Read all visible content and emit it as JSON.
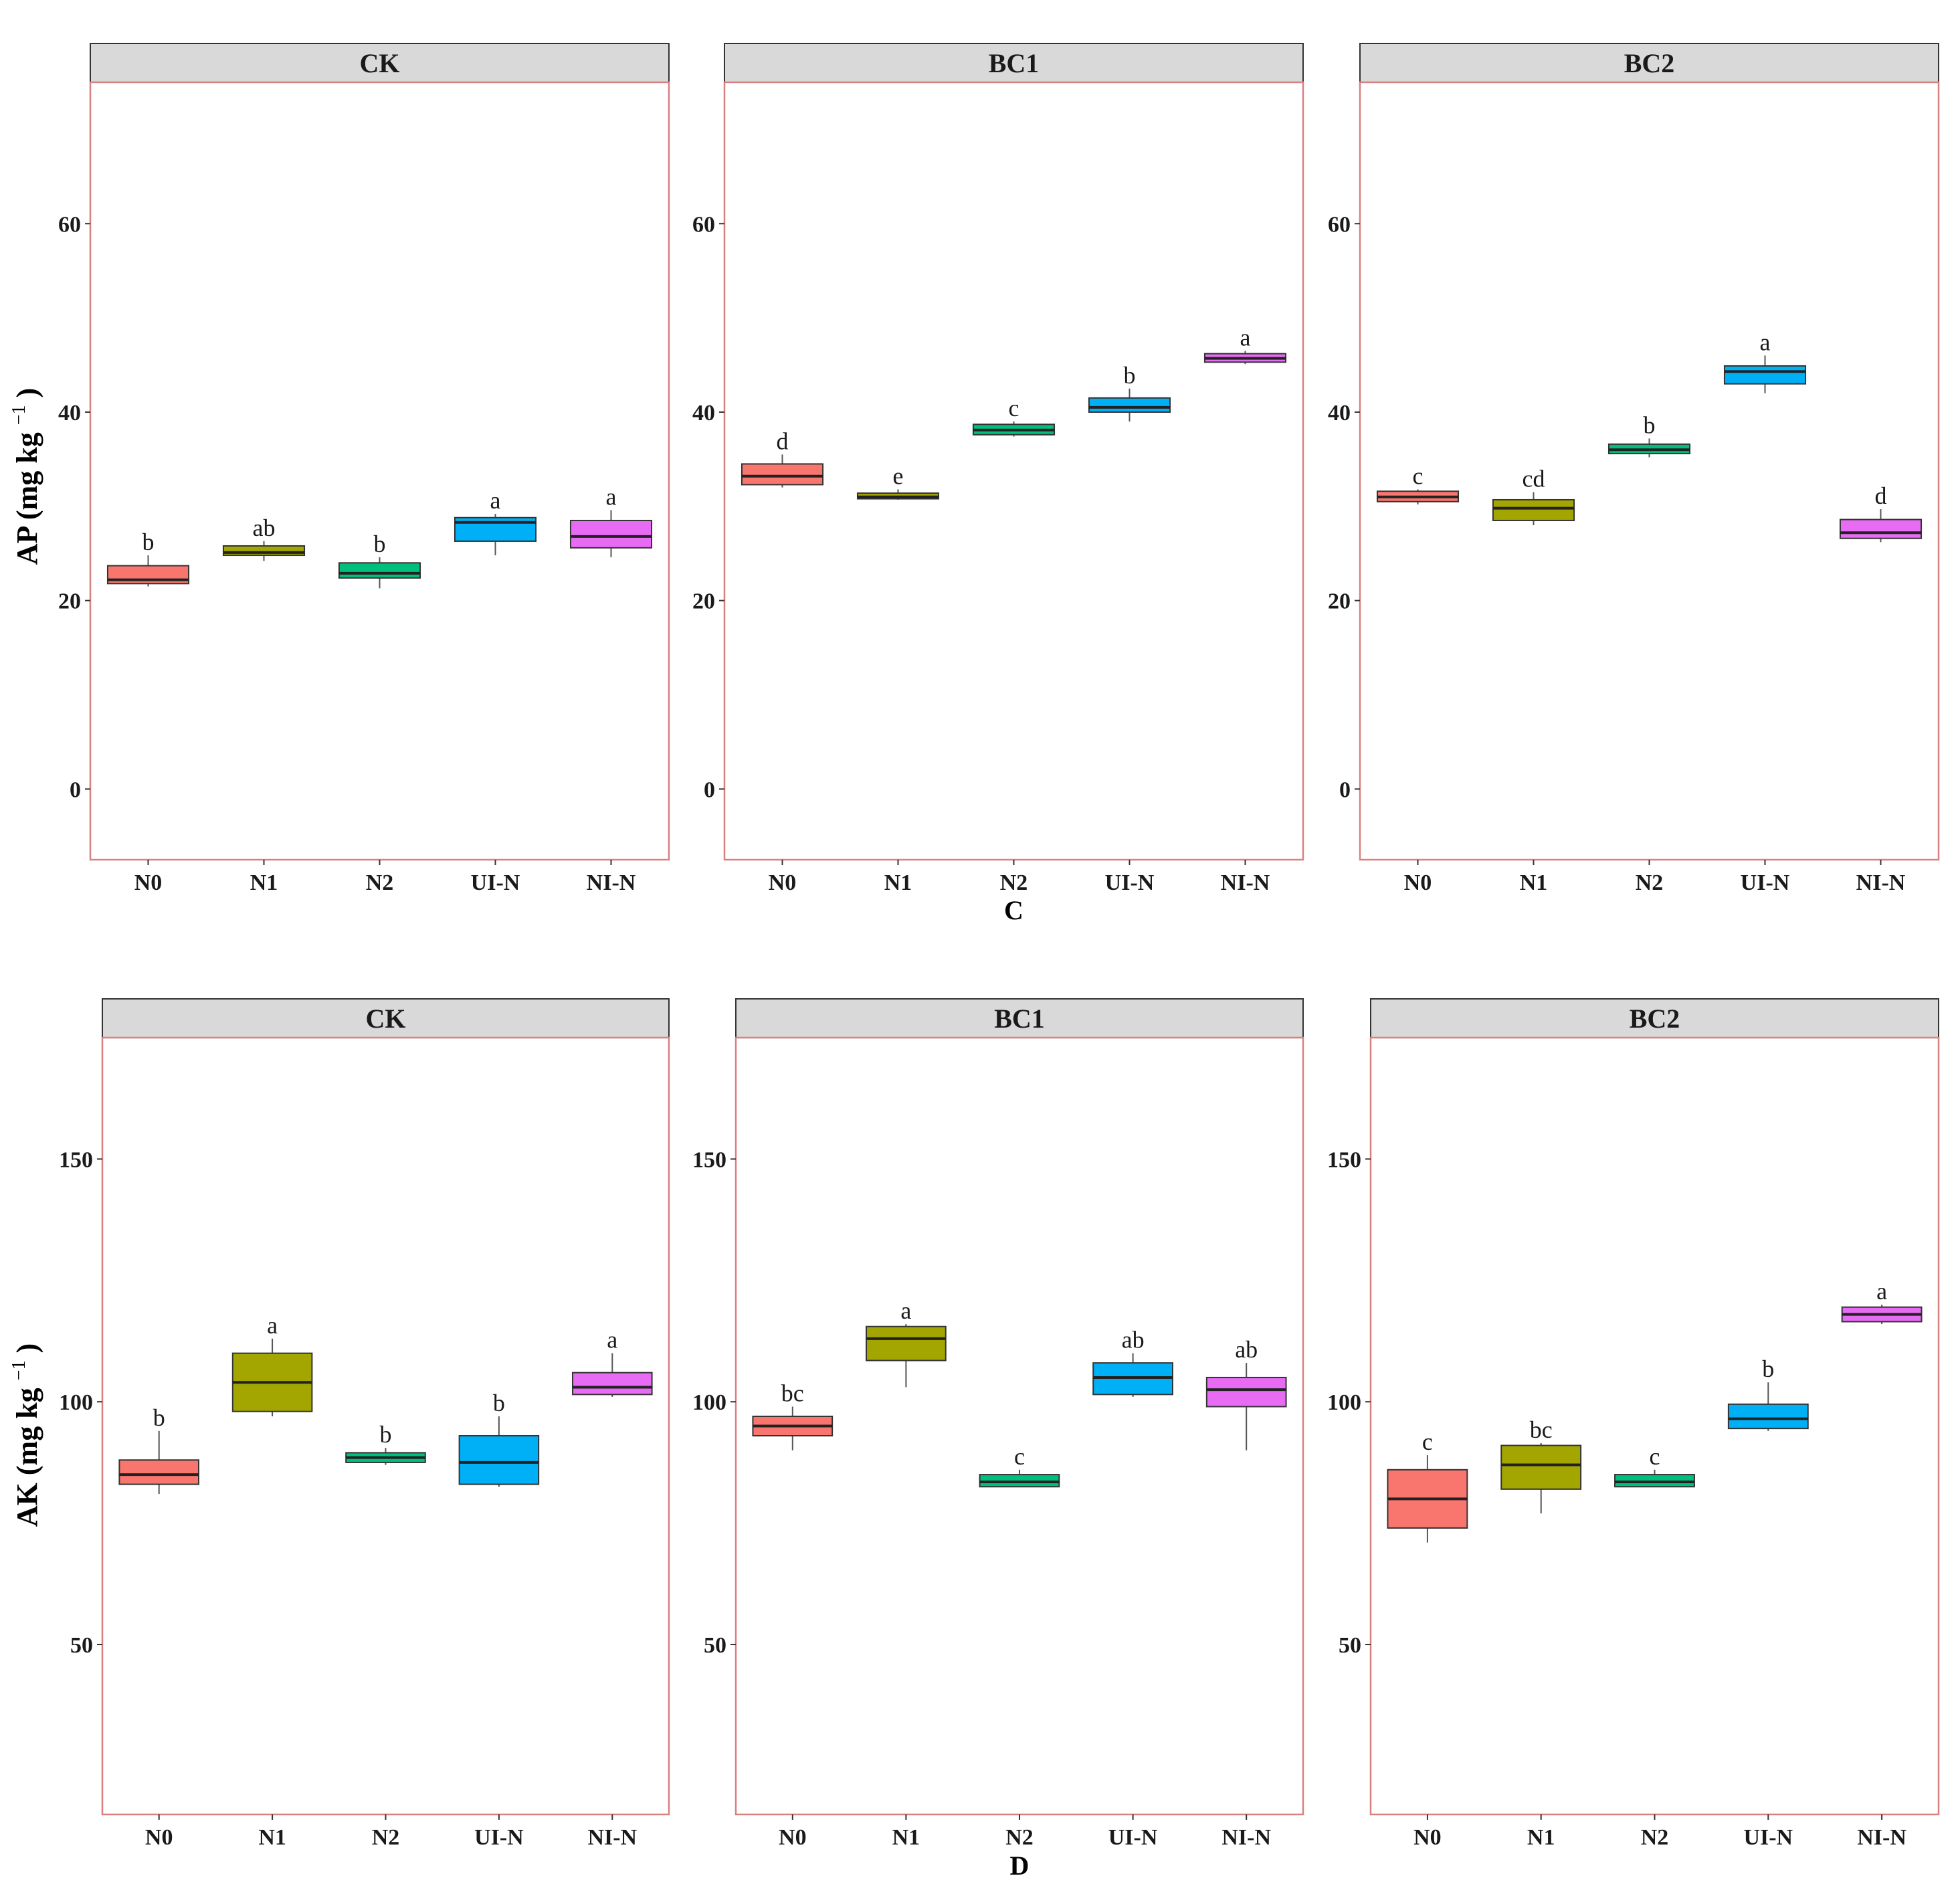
{
  "chart_data": [
    {
      "type": "boxplot",
      "variable": "AP",
      "ylabel": "AP",
      "ylabel_unit": "(mg kg",
      "ylabel_unit_sup": "−1",
      "ylabel_unit_close": ")",
      "caption": "C",
      "ylim": [
        -7.5,
        75
      ],
      "yticks": [
        0,
        20,
        40,
        60
      ],
      "ytick_labels": [
        "0",
        "20",
        "40",
        "60"
      ],
      "categories": [
        "N0",
        "N1",
        "N2",
        "UI-N",
        "NI-N"
      ],
      "colors": [
        "#f8766d",
        "#a3a500",
        "#00bf7d",
        "#00b0f6",
        "#e76bf3"
      ],
      "facets": [
        {
          "name": "CK",
          "boxes": [
            {
              "min": 21.5,
              "q1": 21.8,
              "median": 22.2,
              "q3": 23.7,
              "max": 24.8,
              "letter": "b"
            },
            {
              "min": 24.2,
              "q1": 24.8,
              "median": 25.1,
              "q3": 25.8,
              "max": 26.3,
              "letter": "ab"
            },
            {
              "min": 21.3,
              "q1": 22.4,
              "median": 22.9,
              "q3": 24.0,
              "max": 24.6,
              "letter": "b"
            },
            {
              "min": 24.8,
              "q1": 26.3,
              "median": 28.3,
              "q3": 28.8,
              "max": 29.2,
              "letter": "a"
            },
            {
              "min": 24.6,
              "q1": 25.6,
              "median": 26.8,
              "q3": 28.5,
              "max": 29.6,
              "letter": "a"
            }
          ]
        },
        {
          "name": "BC1",
          "boxes": [
            {
              "min": 32.0,
              "q1": 32.3,
              "median": 33.2,
              "q3": 34.5,
              "max": 35.5,
              "letter": "d"
            },
            {
              "min": 30.7,
              "q1": 30.8,
              "median": 31.0,
              "q3": 31.4,
              "max": 31.8,
              "letter": "e"
            },
            {
              "min": 37.4,
              "q1": 37.6,
              "median": 38.1,
              "q3": 38.7,
              "max": 39.0,
              "letter": "c"
            },
            {
              "min": 39.0,
              "q1": 40.0,
              "median": 40.5,
              "q3": 41.5,
              "max": 42.5,
              "letter": "b"
            },
            {
              "min": 45.1,
              "q1": 45.3,
              "median": 45.7,
              "q3": 46.2,
              "max": 46.5,
              "letter": "a"
            }
          ]
        },
        {
          "name": "BC2",
          "boxes": [
            {
              "min": 30.2,
              "q1": 30.5,
              "median": 31.0,
              "q3": 31.6,
              "max": 31.8,
              "letter": "c"
            },
            {
              "min": 28.0,
              "q1": 28.5,
              "median": 29.8,
              "q3": 30.7,
              "max": 31.5,
              "letter": "cd"
            },
            {
              "min": 35.2,
              "q1": 35.6,
              "median": 36.0,
              "q3": 36.6,
              "max": 37.2,
              "letter": "b"
            },
            {
              "min": 42.0,
              "q1": 43.0,
              "median": 44.3,
              "q3": 44.9,
              "max": 46.0,
              "letter": "a"
            },
            {
              "min": 26.2,
              "q1": 26.6,
              "median": 27.2,
              "q3": 28.6,
              "max": 29.7,
              "letter": "d"
            }
          ]
        }
      ]
    },
    {
      "type": "boxplot",
      "variable": "AK",
      "ylabel": "AK",
      "ylabel_unit": "(mg kg",
      "ylabel_unit_sup": "−1",
      "ylabel_unit_close": ")",
      "caption": "D",
      "ylim": [
        15,
        175
      ],
      "yticks": [
        50,
        100,
        150
      ],
      "ytick_labels": [
        "50",
        "100",
        "150"
      ],
      "categories": [
        "N0",
        "N1",
        "N2",
        "UI-N",
        "NI-N"
      ],
      "colors": [
        "#f8766d",
        "#a3a500",
        "#00bf7d",
        "#00b0f6",
        "#e76bf3"
      ],
      "facets": [
        {
          "name": "CK",
          "boxes": [
            {
              "min": 81,
              "q1": 83,
              "median": 85,
              "q3": 88,
              "max": 94,
              "letter": "b"
            },
            {
              "min": 97,
              "q1": 98,
              "median": 104,
              "q3": 110,
              "max": 113,
              "letter": "a"
            },
            {
              "min": 87,
              "q1": 87.5,
              "median": 88.5,
              "q3": 89.5,
              "max": 90.5,
              "letter": "b"
            },
            {
              "min": 82.5,
              "q1": 83,
              "median": 87.5,
              "q3": 93,
              "max": 97,
              "letter": "b"
            },
            {
              "min": 101,
              "q1": 101.5,
              "median": 103,
              "q3": 106,
              "max": 110,
              "letter": "a"
            }
          ]
        },
        {
          "name": "BC1",
          "boxes": [
            {
              "min": 90,
              "q1": 93,
              "median": 95,
              "q3": 97,
              "max": 99,
              "letter": "bc"
            },
            {
              "min": 103,
              "q1": 108.5,
              "median": 113,
              "q3": 115.5,
              "max": 116,
              "letter": "a"
            },
            {
              "min": 82.5,
              "q1": 82.5,
              "median": 83.5,
              "q3": 85,
              "max": 86,
              "letter": "c"
            },
            {
              "min": 101,
              "q1": 101.5,
              "median": 105,
              "q3": 108,
              "max": 110,
              "letter": "ab"
            },
            {
              "min": 90,
              "q1": 99,
              "median": 102.5,
              "q3": 105,
              "max": 108,
              "letter": "ab"
            }
          ]
        },
        {
          "name": "BC2",
          "boxes": [
            {
              "min": 71,
              "q1": 74,
              "median": 80,
              "q3": 86,
              "max": 89,
              "letter": "c"
            },
            {
              "min": 77,
              "q1": 82,
              "median": 87,
              "q3": 91,
              "max": 91.5,
              "letter": "bc"
            },
            {
              "min": 82.5,
              "q1": 82.5,
              "median": 83.5,
              "q3": 85,
              "max": 86,
              "letter": "c"
            },
            {
              "min": 94,
              "q1": 94.5,
              "median": 96.5,
              "q3": 99.5,
              "max": 104,
              "letter": "b"
            },
            {
              "min": 116,
              "q1": 116.5,
              "median": 118,
              "q3": 119.5,
              "max": 120,
              "letter": "a"
            }
          ]
        }
      ]
    }
  ]
}
